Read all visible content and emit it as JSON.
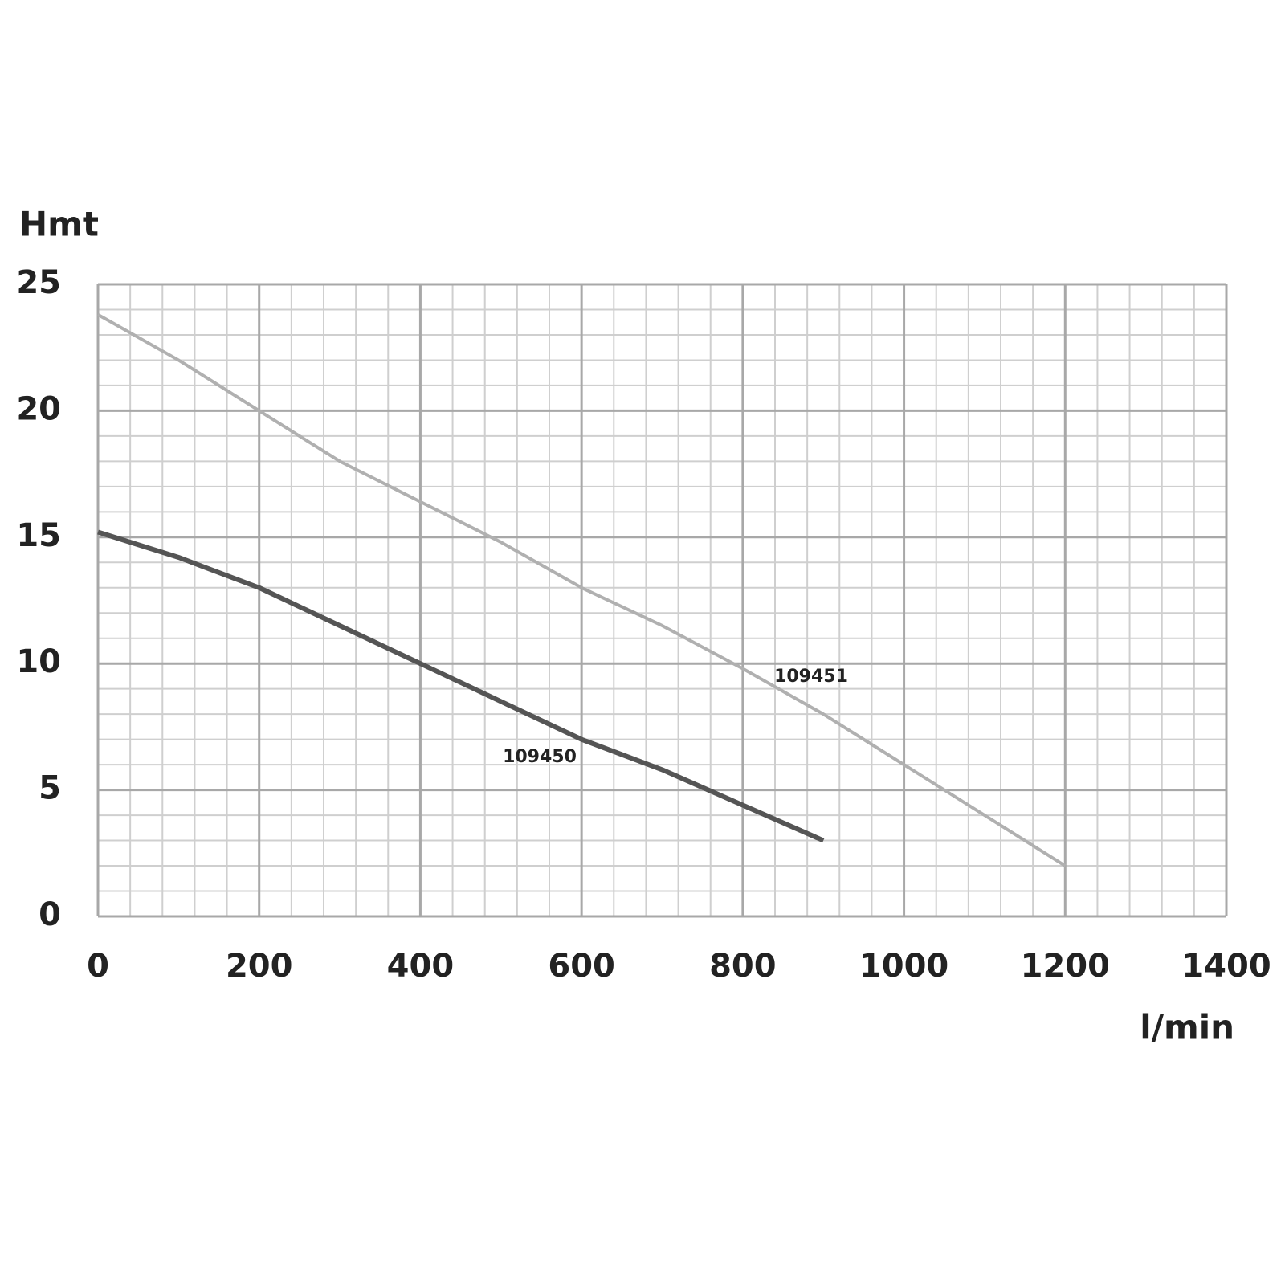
{
  "chart_data": {
    "type": "line",
    "x_label": "l/min",
    "y_label": "Hmt",
    "xlim": [
      0,
      1400
    ],
    "xticks": [
      0,
      200,
      400,
      600,
      800,
      1000,
      1200,
      1400
    ],
    "ylim": [
      0,
      25
    ],
    "yticks": [
      0,
      5,
      10,
      15,
      20,
      25
    ],
    "grid": true,
    "minor_divisions": 5,
    "series": [
      {
        "name": "109450",
        "color": "#555555",
        "x": [
          0,
          100,
          200,
          300,
          400,
          500,
          600,
          700,
          800,
          900
        ],
        "values": [
          15.2,
          14.2,
          13,
          11.5,
          10,
          8.5,
          7,
          5.8,
          4.4,
          3
        ]
      },
      {
        "name": "109451",
        "color": "#b0b0b0",
        "x": [
          0,
          100,
          200,
          300,
          400,
          500,
          600,
          700,
          800,
          900,
          1000,
          1100,
          1200
        ],
        "values": [
          23.8,
          22,
          20,
          18,
          16.4,
          14.8,
          13,
          11.5,
          9.8,
          8,
          6,
          4,
          2
        ]
      }
    ]
  }
}
